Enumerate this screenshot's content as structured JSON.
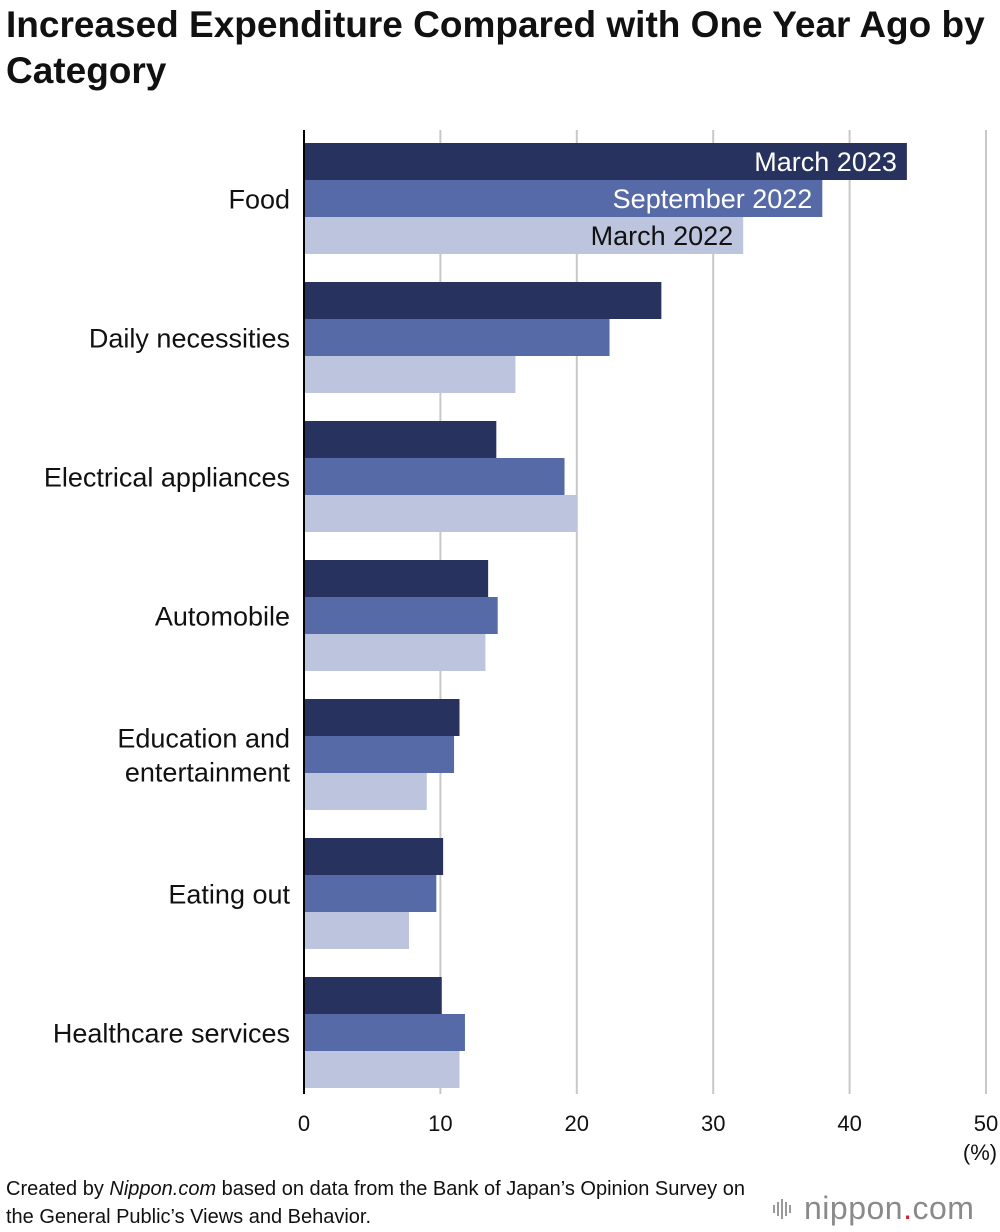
{
  "title": "Increased Expenditure Compared with One Year Ago by Category",
  "footer": {
    "prefix": "Created by ",
    "source_name": "Nippon.com",
    "suffix": " based on data from the Bank of Japan’s Opinion Survey on the General Public’s Views and Behavior."
  },
  "brand": {
    "name": "nippon",
    "dot": ".",
    "tld": "com"
  },
  "colors": {
    "march_2023": "#27325e",
    "september_2022": "#566aa8",
    "march_2022": "#bcc4de",
    "axis": "#000000",
    "grid": "#c8c8c8"
  },
  "chart_data": {
    "type": "bar",
    "orientation": "horizontal",
    "title": "Increased Expenditure Compared with One Year Ago by Category",
    "xlabel": "(%)",
    "ylabel": "",
    "xlim": [
      0,
      50
    ],
    "xticks": [
      0,
      10,
      20,
      30,
      40,
      50
    ],
    "unit_label": "(%)",
    "grid": true,
    "legend": "inline labels on Food bars",
    "categories": [
      [
        "Food"
      ],
      [
        "Daily necessities"
      ],
      [
        "Electrical appliances"
      ],
      [
        "Automobile"
      ],
      [
        "Education and",
        "entertainment"
      ],
      [
        "Eating out"
      ],
      [
        "Healthcare services"
      ]
    ],
    "series": [
      {
        "name": "March 2023",
        "color_key": "march_2023",
        "label_color": "#ffffff",
        "values": [
          44.2,
          26.2,
          14.1,
          13.5,
          11.4,
          10.2,
          10.1
        ]
      },
      {
        "name": "September 2022",
        "color_key": "september_2022",
        "label_color": "#ffffff",
        "values": [
          38.0,
          22.4,
          19.1,
          14.2,
          11.0,
          9.7,
          11.8
        ]
      },
      {
        "name": "March 2022",
        "color_key": "march_2022",
        "label_color": "#111111",
        "values": [
          32.2,
          15.5,
          20.0,
          13.3,
          9.0,
          7.7,
          11.4
        ]
      }
    ]
  }
}
